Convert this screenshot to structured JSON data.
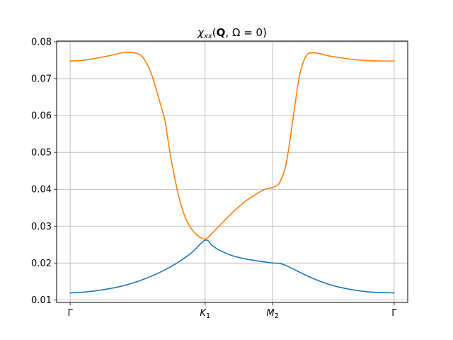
{
  "chart_data": {
    "type": "line",
    "title_parts": {
      "chi": "χ",
      "chi_sub": "xx",
      "open": "(",
      "Q": "Q",
      "rest": ", Ω = 0)"
    },
    "xlabel": "",
    "ylabel": "",
    "grid": true,
    "x_ticks": [
      {
        "x": 0.0,
        "label": "Γ",
        "sub": ""
      },
      {
        "x": 1.0,
        "label": "K",
        "sub": "1"
      },
      {
        "x": 1.5,
        "label": "M",
        "sub": "2"
      },
      {
        "x": 2.4,
        "label": "Γ",
        "sub": ""
      }
    ],
    "xlim": [
      -0.1,
      2.5
    ],
    "ylim": [
      0.0093,
      0.0802
    ],
    "y_ticks": [
      0.01,
      0.02,
      0.03,
      0.04,
      0.05,
      0.06,
      0.07,
      0.08
    ],
    "y_tick_labels": [
      "0.01",
      "0.02",
      "0.03",
      "0.04",
      "0.05",
      "0.06",
      "0.07",
      "0.08"
    ],
    "series": [
      {
        "color": "#1f77b4",
        "x": [
          0.0,
          0.1,
          0.2,
          0.3,
          0.4,
          0.5,
          0.6,
          0.7,
          0.8,
          0.9,
          1.0,
          1.05,
          1.1,
          1.2,
          1.3,
          1.4,
          1.5,
          1.55,
          1.6,
          1.7,
          1.8,
          1.9,
          2.0,
          2.1,
          2.2,
          2.3,
          2.4
        ],
        "y": [
          0.0119,
          0.0121,
          0.0125,
          0.0131,
          0.0139,
          0.015,
          0.0164,
          0.0181,
          0.0202,
          0.0228,
          0.0262,
          0.0248,
          0.0236,
          0.022,
          0.0211,
          0.0205,
          0.02,
          0.0199,
          0.0193,
          0.0175,
          0.0158,
          0.0144,
          0.0134,
          0.0127,
          0.0122,
          0.012,
          0.0119
        ]
      },
      {
        "color": "#ff7f0e",
        "x": [
          0.0,
          0.1,
          0.2,
          0.3,
          0.4,
          0.5,
          0.55,
          0.6,
          0.65,
          0.7,
          0.72,
          0.75,
          0.8,
          0.85,
          0.9,
          0.95,
          1.0,
          1.05,
          1.1,
          1.2,
          1.3,
          1.4,
          1.45,
          1.5,
          1.55,
          1.6,
          1.65,
          1.7,
          1.75,
          1.8,
          1.85,
          1.9,
          2.0,
          2.1,
          2.2,
          2.3,
          2.4
        ],
        "y": [
          0.0748,
          0.075,
          0.0756,
          0.0763,
          0.0771,
          0.0768,
          0.0752,
          0.0715,
          0.0655,
          0.059,
          0.0545,
          0.0477,
          0.0388,
          0.0326,
          0.0292,
          0.0273,
          0.0265,
          0.028,
          0.0299,
          0.0336,
          0.0368,
          0.0392,
          0.0401,
          0.0405,
          0.0418,
          0.047,
          0.059,
          0.071,
          0.0763,
          0.077,
          0.0768,
          0.0763,
          0.0757,
          0.0752,
          0.0749,
          0.0748,
          0.0748
        ]
      }
    ]
  }
}
